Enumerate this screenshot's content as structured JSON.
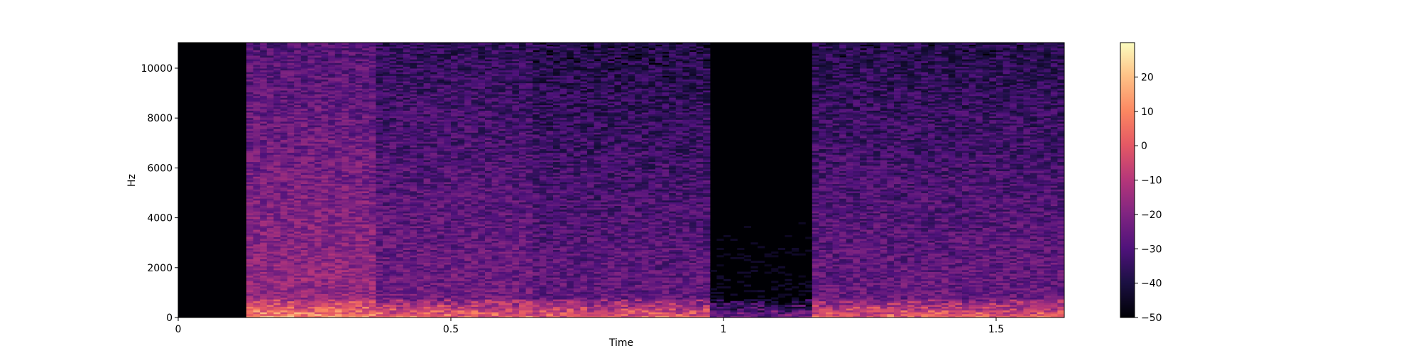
{
  "chart_data": {
    "type": "heatmap",
    "title": "",
    "xlabel": "Time",
    "ylabel": "Hz",
    "xlim": [
      0,
      1.625
    ],
    "ylim": [
      0,
      11025
    ],
    "x_ticks": [
      {
        "value": 0,
        "label": "0"
      },
      {
        "value": 0.5,
        "label": "0.5"
      },
      {
        "value": 1,
        "label": "1"
      },
      {
        "value": 1.5,
        "label": "1.5"
      }
    ],
    "y_ticks": [
      {
        "value": 0,
        "label": "0"
      },
      {
        "value": 2000,
        "label": "2000"
      },
      {
        "value": 4000,
        "label": "4000"
      },
      {
        "value": 6000,
        "label": "6000"
      },
      {
        "value": 8000,
        "label": "8000"
      },
      {
        "value": 10000,
        "label": "10000"
      }
    ],
    "colormap": "magma",
    "colorbar": {
      "range": [
        -50,
        30
      ],
      "ticks": [
        {
          "value": 20,
          "label": "20"
        },
        {
          "value": 10,
          "label": "10"
        },
        {
          "value": 0,
          "label": "0"
        },
        {
          "value": -10,
          "label": "−10"
        },
        {
          "value": -20,
          "label": "−20"
        },
        {
          "value": -30,
          "label": "−30"
        },
        {
          "value": -40,
          "label": "−40"
        },
        {
          "value": -50,
          "label": "−50"
        }
      ]
    },
    "segments": [
      {
        "t_start": 0.0,
        "t_end": 0.12,
        "level_db": -50
      },
      {
        "t_start": 0.12,
        "t_end": 0.36,
        "level_db": -15
      },
      {
        "t_start": 0.36,
        "t_end": 0.65,
        "level_db": -22
      },
      {
        "t_start": 0.65,
        "t_end": 0.98,
        "level_db": -25
      },
      {
        "t_start": 0.98,
        "t_end": 1.16,
        "level_db": -48
      },
      {
        "t_start": 1.16,
        "t_end": 1.625,
        "level_db": -24
      }
    ]
  }
}
